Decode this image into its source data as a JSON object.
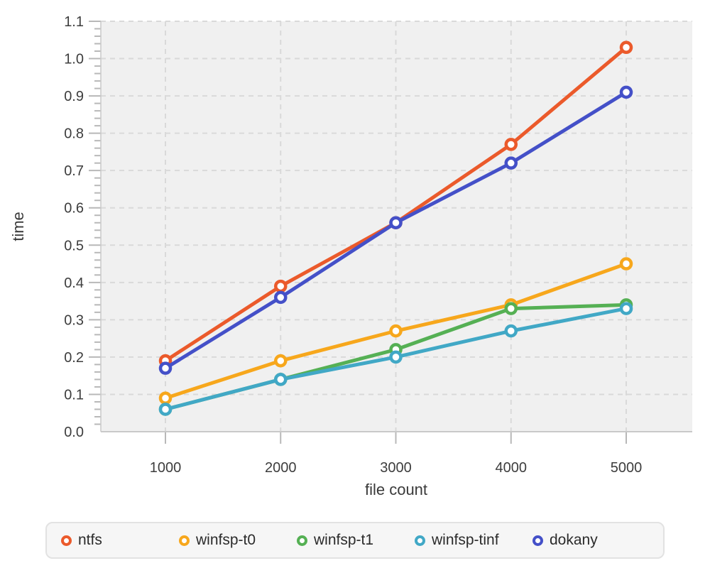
{
  "page": {
    "background": "#ffffff",
    "plot_background": "#f0f0f0"
  },
  "chart_data": {
    "type": "line",
    "title": "",
    "xlabel": "file count",
    "ylabel": "time",
    "x": [
      1000,
      2000,
      3000,
      4000,
      5000
    ],
    "x_tick_labels": [
      "1000",
      "2000",
      "3000",
      "4000",
      "5000"
    ],
    "y_tick_labels": [
      "0.0",
      "0.1",
      "0.2",
      "0.3",
      "0.4",
      "0.5",
      "0.6",
      "0.7",
      "0.8",
      "0.9",
      "1.0",
      "1.1"
    ],
    "ylim": [
      0,
      1.1
    ],
    "y_major_step": 0.1,
    "y_minor_step": 0.02,
    "grid": {
      "show": true,
      "style": "dashed",
      "color": "#d9d9d9"
    },
    "legend_position": "bottom",
    "marker_style": "open-circle",
    "series": [
      {
        "name": "ntfs",
        "color": "#eb5a2b",
        "values": [
          0.19,
          0.39,
          0.56,
          0.77,
          1.03
        ]
      },
      {
        "name": "winfsp-t0",
        "color": "#f7a71c",
        "values": [
          0.09,
          0.19,
          0.27,
          0.34,
          0.45
        ]
      },
      {
        "name": "winfsp-t1",
        "color": "#55b054",
        "values": [
          0.06,
          0.14,
          0.22,
          0.33,
          0.34
        ]
      },
      {
        "name": "winfsp-tinf",
        "color": "#41a8c6",
        "values": [
          0.06,
          0.14,
          0.2,
          0.27,
          0.33
        ]
      },
      {
        "name": "dokany",
        "color": "#4450c8",
        "values": [
          0.17,
          0.36,
          0.56,
          0.72,
          0.91
        ]
      }
    ]
  }
}
